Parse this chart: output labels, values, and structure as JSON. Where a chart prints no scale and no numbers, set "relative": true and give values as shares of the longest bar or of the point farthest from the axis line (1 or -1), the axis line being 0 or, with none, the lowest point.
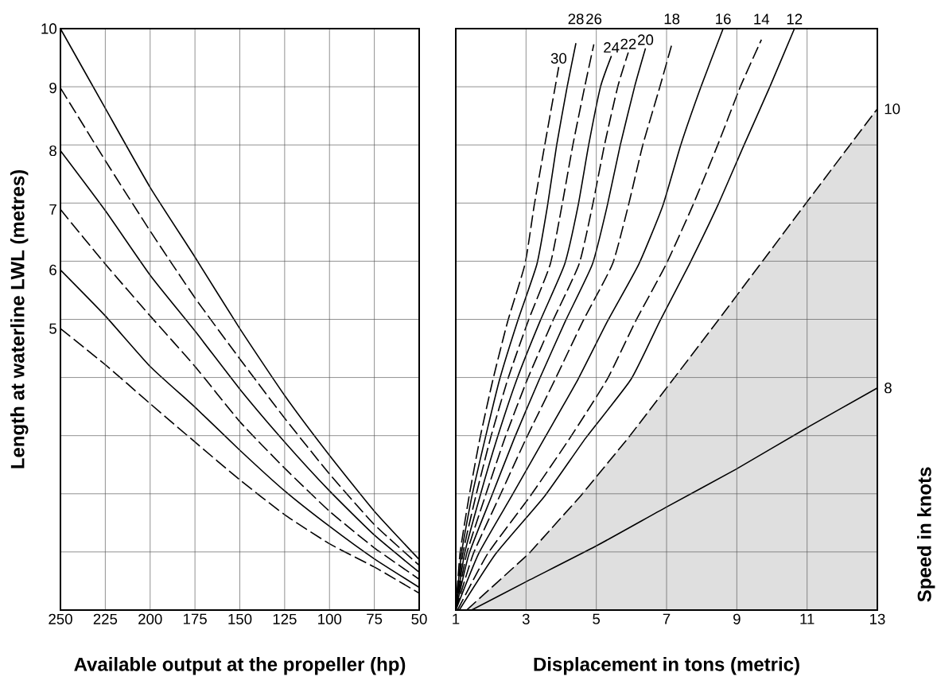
{
  "chart_data": [
    {
      "type": "line",
      "xlabel": "Available output at the propeller (hp)",
      "ylabel": "Length at waterline LWL (metres)",
      "relative": true,
      "x": [
        250,
        225,
        200,
        175,
        150,
        125,
        100,
        75,
        50
      ],
      "xlim": [
        250,
        50
      ],
      "xticks": [
        250,
        225,
        200,
        175,
        150,
        125,
        100,
        75,
        50
      ],
      "grid": true,
      "tick_labels": "x",
      "series": [
        {
          "name": "10",
          "color": "#000000",
          "line_style": "solid",
          "values": [
            1.0,
            0.863,
            0.727,
            0.607,
            0.484,
            0.369,
            0.266,
            0.17,
            0.087
          ]
        },
        {
          "name": "9",
          "color": "#000000",
          "line_style": "dashed",
          "values": [
            0.898,
            0.773,
            0.652,
            0.537,
            0.432,
            0.33,
            0.234,
            0.147,
            0.077
          ]
        },
        {
          "name": "8",
          "color": "#000000",
          "line_style": "solid",
          "values": [
            0.79,
            0.687,
            0.576,
            0.48,
            0.38,
            0.289,
            0.205,
            0.129,
            0.065
          ]
        },
        {
          "name": "7",
          "color": "#000000",
          "line_style": "dashed",
          "values": [
            0.689,
            0.595,
            0.506,
            0.419,
            0.324,
            0.244,
            0.17,
            0.107,
            0.053
          ]
        },
        {
          "name": "6",
          "color": "#000000",
          "line_style": "solid",
          "values": [
            0.585,
            0.506,
            0.419,
            0.349,
            0.275,
            0.205,
            0.144,
            0.088,
            0.039
          ]
        },
        {
          "name": "5",
          "color": "#000000",
          "line_style": "dashed",
          "values": [
            0.484,
            0.422,
            0.355,
            0.289,
            0.224,
            0.164,
            0.114,
            0.074,
            0.029
          ]
        }
      ]
    },
    {
      "type": "line",
      "xlabel": "Displacement in tons (metric)",
      "y2label": "Speed in knots",
      "relative": true,
      "xlim": [
        1,
        13
      ],
      "xticks": [
        1,
        3,
        5,
        7,
        9,
        11,
        13
      ],
      "grid": true,
      "tick_labels": "x",
      "series": [
        {
          "name": "30",
          "color": "#000000",
          "line_style": "dashed",
          "x": [
            1.0,
            1.12,
            1.38,
            1.69,
            2.06,
            2.48,
            2.97,
            3.23,
            3.53,
            3.83,
            3.93
          ],
          "values": [
            0,
            0.097,
            0.196,
            0.296,
            0.397,
            0.497,
            0.595,
            0.695,
            0.799,
            0.9,
            0.934
          ]
        },
        {
          "name": "28",
          "color": "#000000",
          "line_style": "solid",
          "x": [
            1.0,
            1.16,
            1.46,
            1.84,
            2.25,
            2.76,
            3.31,
            3.61,
            3.87,
            4.17,
            4.42
          ],
          "values": [
            0,
            0.097,
            0.196,
            0.296,
            0.397,
            0.497,
            0.595,
            0.695,
            0.799,
            0.9,
            0.975
          ]
        },
        {
          "name": "26",
          "color": "#000000",
          "line_style": "dashed",
          "x": [
            1.0,
            1.2,
            1.57,
            1.99,
            2.48,
            3.06,
            3.69,
            4.02,
            4.33,
            4.67,
            4.93
          ],
          "values": [
            0,
            0.097,
            0.196,
            0.296,
            0.397,
            0.497,
            0.595,
            0.695,
            0.799,
            0.9,
            0.973
          ]
        },
        {
          "name": "24",
          "color": "#000000",
          "line_style": "solid",
          "x": [
            1.0,
            1.25,
            1.69,
            2.18,
            2.74,
            3.4,
            4.1,
            4.48,
            4.78,
            5.12,
            5.43
          ],
          "values": [
            0,
            0.097,
            0.196,
            0.296,
            0.397,
            0.497,
            0.595,
            0.695,
            0.799,
            0.9,
            0.953
          ]
        },
        {
          "name": "22",
          "color": "#000000",
          "line_style": "dashed",
          "x": [
            1.0,
            1.31,
            1.84,
            2.4,
            3.04,
            3.76,
            4.51,
            4.89,
            5.23,
            5.61,
            5.91
          ],
          "values": [
            0,
            0.097,
            0.196,
            0.296,
            0.397,
            0.497,
            0.595,
            0.695,
            0.799,
            0.9,
            0.959
          ]
        },
        {
          "name": "20",
          "color": "#000000",
          "line_style": "solid",
          "x": [
            1.0,
            1.38,
            2.02,
            2.67,
            3.38,
            4.12,
            4.89,
            5.31,
            5.68,
            6.09,
            6.4
          ],
          "values": [
            0,
            0.097,
            0.196,
            0.296,
            0.397,
            0.497,
            0.595,
            0.695,
            0.799,
            0.9,
            0.966
          ]
        },
        {
          "name": "18",
          "color": "#000000",
          "line_style": "dashed",
          "x": [
            1.0,
            1.5,
            2.25,
            3.01,
            3.83,
            4.62,
            5.46,
            5.91,
            6.32,
            6.81,
            7.15
          ],
          "values": [
            0,
            0.097,
            0.196,
            0.296,
            0.397,
            0.497,
            0.595,
            0.695,
            0.799,
            0.9,
            0.973
          ]
        },
        {
          "name": "16",
          "color": "#000000",
          "line_style": "solid",
          "x": [
            1.0,
            1.65,
            2.59,
            3.53,
            4.48,
            5.32,
            6.21,
            6.89,
            7.4,
            7.98,
            8.61
          ],
          "values": [
            0,
            0.097,
            0.196,
            0.296,
            0.397,
            0.497,
            0.595,
            0.695,
            0.799,
            0.9,
            1.0
          ]
        },
        {
          "name": "14",
          "color": "#000000",
          "line_style": "dashed",
          "x": [
            1.05,
            1.91,
            3.12,
            4.25,
            5.31,
            6.12,
            6.99,
            7.74,
            8.45,
            9.1,
            9.7
          ],
          "values": [
            0,
            0.097,
            0.196,
            0.296,
            0.397,
            0.497,
            0.595,
            0.695,
            0.799,
            0.9,
            0.981
          ]
        },
        {
          "name": "12",
          "color": "#000000",
          "line_style": "solid",
          "x": [
            1.1,
            2.14,
            3.53,
            4.7,
            5.99,
            6.81,
            7.65,
            8.45,
            9.2,
            9.94,
            10.64
          ],
          "values": [
            0,
            0.097,
            0.196,
            0.296,
            0.397,
            0.497,
            0.595,
            0.695,
            0.799,
            0.9,
            1.0
          ]
        },
        {
          "name": "10",
          "type": "area",
          "color": "#dfdfdf",
          "line_style": "dashed",
          "x": [
            1.31,
            3.08,
            4.55,
            5.91,
            7.19,
            8.45,
            9.67,
            10.91,
            12.21,
            13.0
          ],
          "values": [
            0,
            0.097,
            0.196,
            0.296,
            0.397,
            0.497,
            0.595,
            0.695,
            0.799,
            0.862
          ]
        },
        {
          "name": "8",
          "color": "#000000",
          "line_style": "solid",
          "x": [
            1.45,
            2.98,
            4.99,
            6.96,
            8.97,
            10.98,
            13.0
          ],
          "values": [
            0,
            0.048,
            0.11,
            0.176,
            0.242,
            0.313,
            0.382
          ]
        }
      ]
    }
  ]
}
